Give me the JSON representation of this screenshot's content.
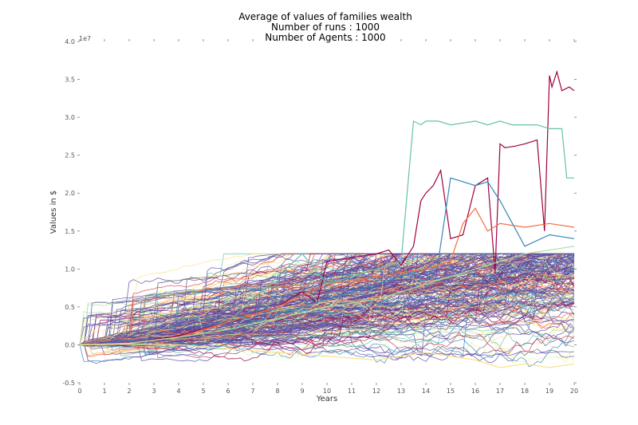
{
  "chart_data": {
    "type": "line",
    "title_lines": [
      "Average of values of families wealth",
      "Number of runs : 1000",
      "Number of Agents : 1000"
    ],
    "xlabel": "Years",
    "ylabel": "Values in $",
    "offset_text": "1e7",
    "xlim": [
      0,
      20
    ],
    "ylim": [
      -0.5,
      4.0
    ],
    "y_unit_multiplier": 10000000,
    "x_ticks": [
      "0",
      "1",
      "2",
      "3",
      "4",
      "5",
      "6",
      "7",
      "8",
      "9",
      "10",
      "11",
      "12",
      "13",
      "14",
      "15",
      "16",
      "17",
      "18",
      "19",
      "20"
    ],
    "y_ticks": [
      "-0.5",
      "0.0",
      "0.5",
      "1.0",
      "1.5",
      "2.0",
      "2.5",
      "3.0",
      "3.5",
      "4.0"
    ],
    "grid": false,
    "legend": "none",
    "colormap": "Spectral",
    "series_count": 1000,
    "highlighted_series": [
      {
        "color": "#9e0142",
        "x": [
          0,
          2,
          4,
          6,
          8,
          9,
          9.6,
          10,
          11,
          12,
          12.5,
          13,
          13.5,
          13.8,
          14,
          14.3,
          14.6,
          15,
          15.5,
          16,
          16.5,
          16.8,
          17,
          17.2,
          17.6,
          18,
          18.5,
          18.8,
          19,
          19.1,
          19.3,
          19.5,
          19.8,
          20
        ],
        "y": [
          0,
          0.02,
          0.12,
          0.3,
          0.5,
          0.7,
          0.55,
          1.1,
          1.15,
          1.2,
          1.25,
          1.05,
          1.3,
          1.9,
          2.0,
          2.1,
          2.3,
          1.4,
          1.45,
          2.1,
          2.2,
          0.95,
          2.65,
          2.6,
          2.62,
          2.65,
          2.7,
          1.5,
          3.55,
          3.4,
          3.6,
          3.35,
          3.4,
          3.35
        ]
      },
      {
        "color": "#66c2a5",
        "x": [
          0,
          2,
          4,
          6,
          7,
          8,
          9,
          10,
          11,
          12,
          13,
          13.5,
          13.8,
          14,
          14.5,
          15,
          16,
          16.5,
          17,
          17.5,
          18,
          18.5,
          19,
          19.5,
          19.7,
          20
        ],
        "y": [
          0,
          0.02,
          0.1,
          0.3,
          0.6,
          0.9,
          1.2,
          0.8,
          0.9,
          1.0,
          1.1,
          2.95,
          2.9,
          2.95,
          2.95,
          2.9,
          2.95,
          2.9,
          2.95,
          2.9,
          2.9,
          2.9,
          2.85,
          2.85,
          2.2,
          2.2
        ]
      },
      {
        "color": "#3288bd",
        "x": [
          0,
          2,
          4,
          6,
          8,
          10,
          11,
          12,
          13,
          14,
          14.5,
          15,
          16,
          16.5,
          17,
          18,
          19,
          20
        ],
        "y": [
          0,
          0.02,
          0.1,
          0.2,
          0.4,
          0.6,
          0.7,
          0.8,
          0.9,
          1.0,
          1.1,
          2.2,
          2.1,
          2.15,
          1.9,
          1.3,
          1.45,
          1.4
        ]
      },
      {
        "color": "#f46d43",
        "x": [
          0,
          2,
          4,
          6,
          8,
          10,
          12,
          14,
          15,
          15.5,
          16,
          16.5,
          17,
          18,
          19,
          20
        ],
        "y": [
          0,
          0.02,
          0.1,
          0.3,
          0.5,
          0.8,
          0.9,
          1.0,
          1.1,
          1.6,
          1.8,
          1.5,
          1.6,
          1.55,
          1.6,
          1.55
        ]
      },
      {
        "color": "#abdda4",
        "x": [
          0,
          2,
          4,
          6,
          8,
          10,
          12,
          14,
          16,
          18,
          20
        ],
        "y": [
          0,
          0.02,
          0.1,
          0.2,
          0.35,
          0.5,
          0.6,
          0.8,
          1.0,
          1.2,
          1.3
        ]
      },
      {
        "color": "#fee08b",
        "x": [
          0,
          2,
          4,
          6,
          8,
          10,
          12,
          14,
          16,
          17,
          18,
          19,
          20
        ],
        "y": [
          0,
          0.01,
          0.0,
          -0.05,
          -0.1,
          -0.15,
          -0.2,
          -0.1,
          -0.2,
          -0.3,
          -0.25,
          -0.3,
          -0.25
        ]
      }
    ]
  }
}
